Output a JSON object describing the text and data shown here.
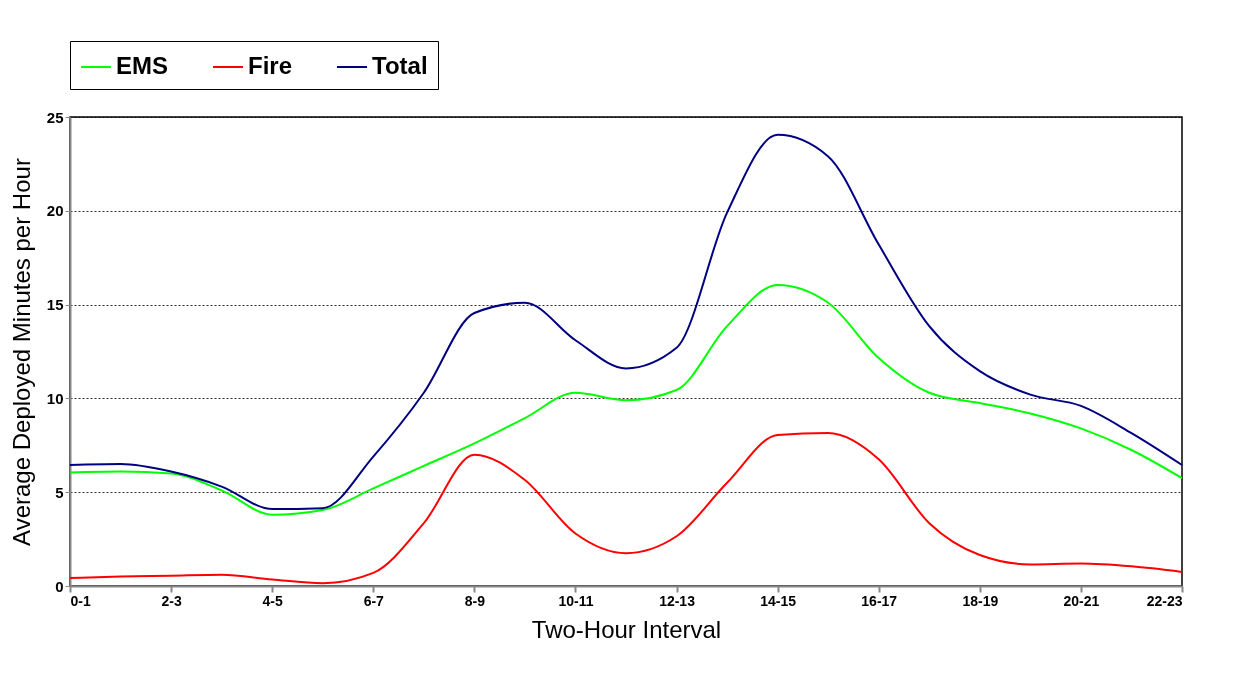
{
  "chart_data": {
    "type": "line",
    "xlabel": "Two-Hour Interval",
    "ylabel": "Average Deployed Minutes per Hour",
    "categories": [
      "0-1",
      null,
      "2-3",
      null,
      "4-5",
      null,
      "6-7",
      null,
      "8-9",
      null,
      "10-11",
      null,
      "12-13",
      null,
      "14-15",
      null,
      "16-17",
      null,
      "18-19",
      null,
      "20-21",
      null,
      "22-23"
    ],
    "series": [
      {
        "name": "EMS",
        "color": "#00ff00",
        "values": [
          6.05,
          6.1,
          6.0,
          5.1,
          3.8,
          4.05,
          5.2,
          6.4,
          7.6,
          8.95,
          10.3,
          9.9,
          10.45,
          13.85,
          16.05,
          15.1,
          12.15,
          10.3,
          9.75,
          9.2,
          8.4,
          7.25,
          5.75
        ]
      },
      {
        "name": "Fire",
        "color": "#ff0000",
        "values": [
          0.43,
          0.5,
          0.55,
          0.6,
          0.35,
          0.15,
          0.7,
          3.35,
          7.0,
          5.65,
          2.8,
          1.75,
          2.65,
          5.5,
          8.05,
          8.15,
          6.75,
          3.35,
          1.65,
          1.15,
          1.2,
          1.05,
          0.75
        ]
      },
      {
        "name": "Total",
        "color": "#000080",
        "values": [
          6.45,
          6.5,
          6.1,
          5.3,
          4.1,
          4.15,
          6.9,
          10.3,
          14.55,
          15.1,
          13.1,
          11.6,
          12.7,
          19.9,
          24.05,
          22.9,
          18.2,
          13.85,
          11.45,
          10.2,
          9.6,
          8.15,
          6.45
        ]
      }
    ],
    "ylim": [
      0,
      25
    ],
    "yticks": [
      0,
      5,
      10,
      15,
      20,
      25
    ],
    "grid": "y",
    "legend": "top",
    "line_style": "solid",
    "marker": "none"
  }
}
